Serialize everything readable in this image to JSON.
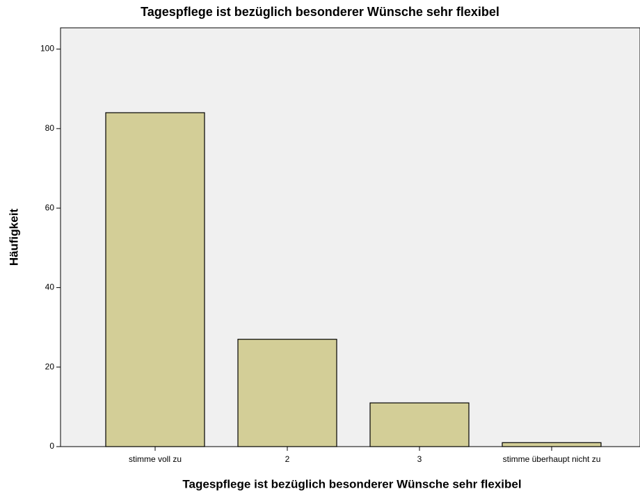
{
  "chart_data": {
    "type": "bar",
    "title": "Tagespflege ist bezüglich besonderer Wünsche sehr flexibel",
    "x_label": "Tagespflege ist bezüglich besonderer Wünsche sehr flexibel",
    "y_label": "Häufigkeit",
    "categories": [
      "stimme voll zu",
      "2",
      "3",
      "stimme überhaupt nicht zu"
    ],
    "values": [
      84,
      27,
      11,
      1
    ],
    "color": "#d3ce97",
    "ylim": [
      0,
      105
    ],
    "yticks": [
      0,
      20,
      40,
      60,
      80,
      100
    ],
    "grid": false
  }
}
